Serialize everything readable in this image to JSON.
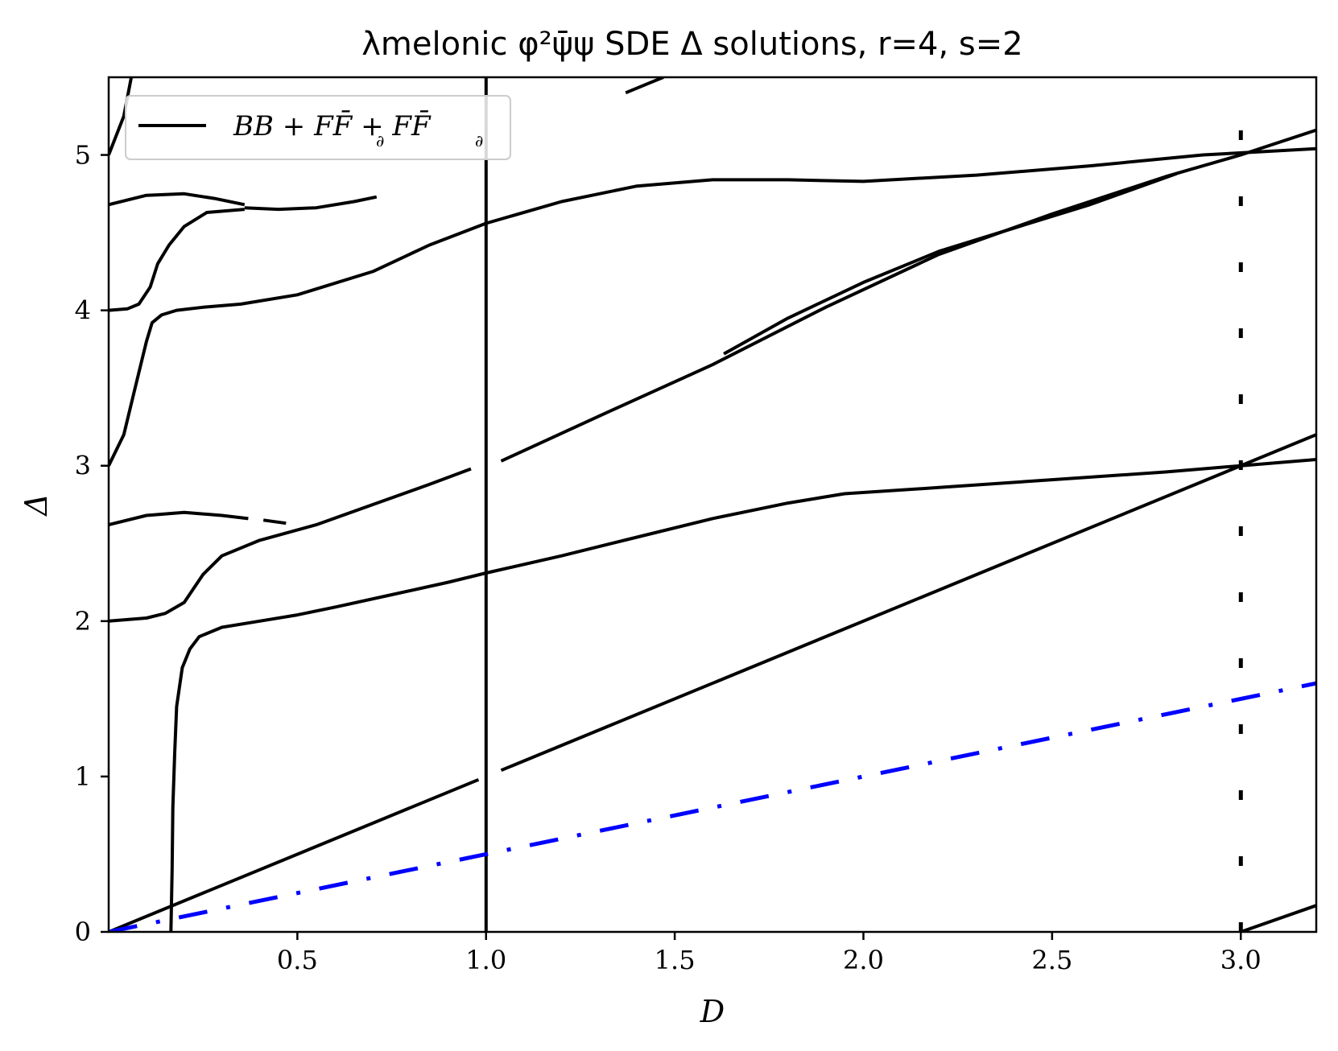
{
  "chart_data": {
    "type": "line",
    "title": "λmelonic φ²ψ̄ψ SDE Δ solutions, r=4, s=2",
    "xlabel": "D",
    "ylabel": "Δ",
    "xlim": [
      0,
      3.2
    ],
    "ylim": [
      0,
      5.5
    ],
    "xticks": [
      0.5,
      1.0,
      1.5,
      2.0,
      2.5,
      3.0
    ],
    "xtick_labels": [
      "0.5",
      "1.0",
      "1.5",
      "2.0",
      "2.5",
      "3.0"
    ],
    "yticks": [
      0,
      1,
      2,
      3,
      4,
      5
    ],
    "ytick_labels": [
      "0",
      "1",
      "2",
      "3",
      "4",
      "5"
    ],
    "grid": false,
    "legend": {
      "placement": "top-left",
      "entries": [
        "BB + FF̄ + FF̄"
      ]
    },
    "colors": {
      "solutions": "#000000",
      "reference": "#0000ff"
    },
    "series": [
      {
        "name": "BB + FF̄ + FF̄",
        "style": "solid",
        "x": [
          0.0,
          0.04,
          0.06
        ],
        "y": [
          5.0,
          5.25,
          5.5
        ]
      },
      {
        "style": "solid",
        "x": [
          0.0,
          0.1,
          0.2,
          0.28,
          0.36
        ],
        "y": [
          4.68,
          4.74,
          4.75,
          4.72,
          4.68
        ]
      },
      {
        "style": "solid",
        "x": [
          0.36,
          0.45,
          0.55,
          0.65,
          0.71
        ],
        "y": [
          4.66,
          4.65,
          4.66,
          4.7,
          4.73
        ]
      },
      {
        "style": "solid",
        "x": [
          0.0,
          0.05,
          0.08,
          0.11,
          0.13,
          0.16,
          0.2,
          0.26,
          0.36
        ],
        "y": [
          4.0,
          4.01,
          4.04,
          4.15,
          4.3,
          4.42,
          4.54,
          4.63,
          4.65
        ]
      },
      {
        "style": "solid",
        "x": [
          0.0,
          0.04,
          0.07,
          0.1,
          0.115,
          0.14,
          0.18,
          0.25,
          0.35,
          0.5,
          0.7,
          0.85,
          1.0,
          1.2,
          1.4,
          1.6,
          1.8,
          2.0,
          2.3,
          2.6,
          2.9,
          3.2
        ],
        "y": [
          3.0,
          3.2,
          3.5,
          3.8,
          3.92,
          3.97,
          4.0,
          4.02,
          4.04,
          4.1,
          4.25,
          4.42,
          4.56,
          4.7,
          4.8,
          4.84,
          4.84,
          4.83,
          4.87,
          4.93,
          5.0,
          5.04
        ]
      },
      {
        "style": "solid",
        "x": [
          0.0,
          0.1,
          0.2,
          0.3,
          0.37
        ],
        "y": [
          2.62,
          2.68,
          2.7,
          2.68,
          2.66
        ]
      },
      {
        "style": "solid",
        "x": [
          0.41,
          0.47
        ],
        "y": [
          2.65,
          2.63
        ]
      },
      {
        "style": "solid",
        "x": [
          0.0,
          0.1,
          0.15,
          0.2,
          0.25,
          0.3,
          0.4,
          0.55,
          0.7,
          0.85,
          0.96
        ],
        "y": [
          2.0,
          2.02,
          2.05,
          2.12,
          2.3,
          2.42,
          2.52,
          2.62,
          2.75,
          2.88,
          2.98
        ]
      },
      {
        "style": "solid",
        "x": [
          1.04,
          1.3,
          1.6,
          1.9,
          2.2,
          2.5,
          2.8,
          3.0,
          3.2
        ],
        "y": [
          3.03,
          3.32,
          3.65,
          4.02,
          4.36,
          4.62,
          4.86,
          5.0,
          5.16
        ]
      },
      {
        "style": "solid",
        "x": [
          1.63,
          1.8,
          2.0,
          2.2,
          2.4,
          2.6,
          2.83
        ],
        "y": [
          3.72,
          3.95,
          4.18,
          4.38,
          4.53,
          4.68,
          4.88
        ]
      },
      {
        "style": "solid",
        "x": [
          1.37,
          1.43,
          1.47
        ],
        "y": [
          5.4,
          5.46,
          5.5
        ]
      },
      {
        "style": "solid",
        "x": [
          0.165,
          0.168,
          0.17,
          0.175,
          0.18,
          0.195,
          0.215,
          0.24,
          0.3,
          0.4,
          0.5,
          0.6,
          0.75,
          0.9,
          1.0,
          1.2,
          1.4,
          1.6,
          1.8,
          1.95,
          2.2,
          2.5,
          2.8,
          3.0,
          3.2
        ],
        "y": [
          0.0,
          0.4,
          0.8,
          1.15,
          1.45,
          1.7,
          1.82,
          1.9,
          1.96,
          2.0,
          2.04,
          2.09,
          2.17,
          2.25,
          2.31,
          2.42,
          2.54,
          2.66,
          2.76,
          2.82,
          2.86,
          2.91,
          2.96,
          3.0,
          3.04
        ]
      },
      {
        "style": "solid",
        "x": [
          0.0,
          0.98
        ],
        "y": [
          0.0,
          0.98
        ]
      },
      {
        "style": "solid",
        "x": [
          1.04,
          3.2
        ],
        "y": [
          1.04,
          3.2
        ]
      },
      {
        "style": "solid",
        "x": [
          3.0,
          3.2
        ],
        "y": [
          0.0,
          0.17
        ]
      },
      {
        "style": "solid",
        "x": [
          1.0,
          1.0
        ],
        "y": [
          0.0,
          5.5
        ]
      },
      {
        "style": "dashdot",
        "x": [
          0.0,
          3.2
        ],
        "y": [
          0.0,
          1.6
        ]
      },
      {
        "style": "dotted",
        "x": [
          3.0,
          3.0
        ],
        "y": [
          0.0,
          5.5
        ]
      }
    ]
  },
  "legend_sub_1": "∂",
  "legend_sub_2": "∂"
}
